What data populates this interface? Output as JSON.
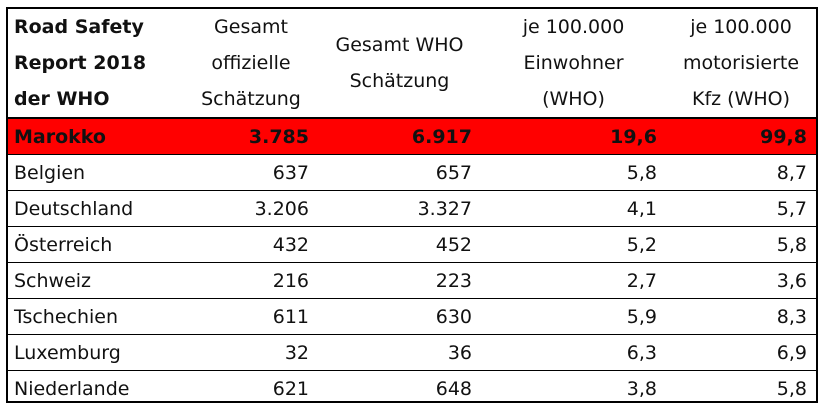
{
  "headers": [
    {
      "lines": [
        "Road Safety",
        "Report 2018",
        "der WHO"
      ]
    },
    {
      "lines": [
        "Gesamt",
        "offizielle",
        "Schätzung"
      ]
    },
    {
      "lines": [
        "Gesamt WHO",
        "Schätzung"
      ]
    },
    {
      "lines": [
        "je 100.000",
        "Einwohner",
        "(WHO)"
      ]
    },
    {
      "lines": [
        "je 100.000",
        "motorisierte",
        "Kfz (WHO)"
      ]
    }
  ],
  "rows": [
    {
      "country": "Marokko",
      "official": "3.785",
      "who": "6.917",
      "per_inhabitants": "19,6",
      "per_vehicles": "99,8",
      "highlight": true
    },
    {
      "country": "Belgien",
      "official": "637",
      "who": "657",
      "per_inhabitants": "5,8",
      "per_vehicles": "8,7"
    },
    {
      "country": "Deutschland",
      "official": "3.206",
      "who": "3.327",
      "per_inhabitants": "4,1",
      "per_vehicles": "5,7"
    },
    {
      "country": "Österreich",
      "official": "432",
      "who": "452",
      "per_inhabitants": "5,2",
      "per_vehicles": "5,8"
    },
    {
      "country": "Schweiz",
      "official": "216",
      "who": "223",
      "per_inhabitants": "2,7",
      "per_vehicles": "3,6"
    },
    {
      "country": "Tschechien",
      "official": "611",
      "who": "630",
      "per_inhabitants": "5,9",
      "per_vehicles": "8,3"
    },
    {
      "country": "Luxemburg",
      "official": "32",
      "who": "36",
      "per_inhabitants": "6,3",
      "per_vehicles": "6,9"
    },
    {
      "country": "Niederlande",
      "official": "621",
      "who": "648",
      "per_inhabitants": "3,8",
      "per_vehicles": "5,8"
    }
  ],
  "colors": {
    "highlight": "#ff0000"
  }
}
